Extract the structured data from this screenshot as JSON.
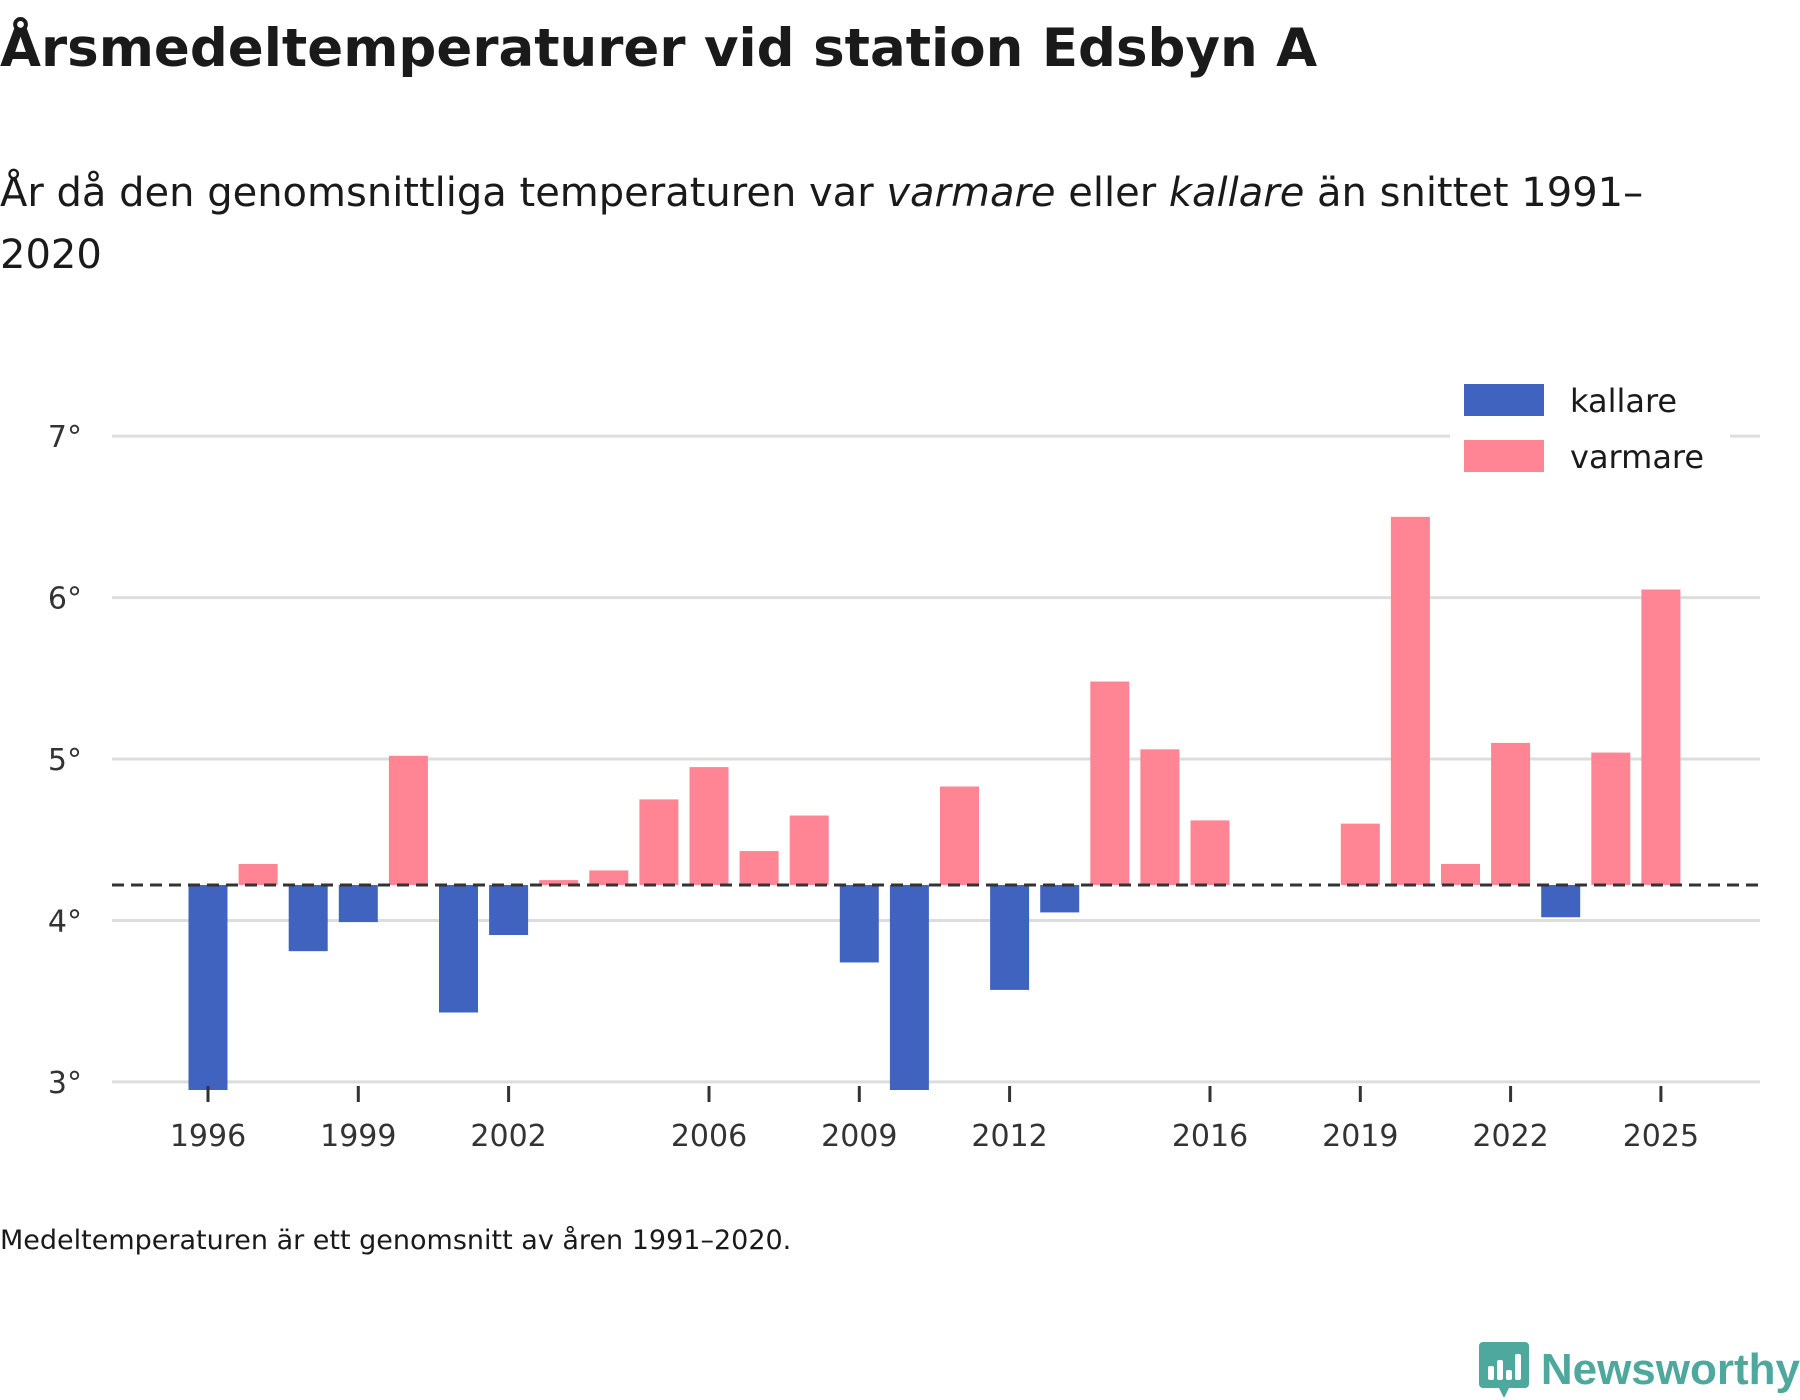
{
  "title_pre": "Årsmedeltemperaturer vid station ",
  "title_station": "Edsbyn A",
  "subtitle": {
    "part1": "År då den genomsnittliga temperaturen var ",
    "warm_word": "varmare",
    "part2": " eller ",
    "cold_word": "kallare",
    "part3": " än snittet 1991–2020"
  },
  "note": "Medeltemperaturen är ett genomsnitt av åren 1991–2020.",
  "brand": "Newsworthy",
  "colors": {
    "cold": "#4063bf",
    "warm": "#ff8494",
    "grid": "#dddddd",
    "baseline": "#333333",
    "brand": "#4fa89d"
  },
  "chart_data": {
    "type": "bar",
    "title": "Årsmedeltemperaturer vid station Edsbyn A",
    "baseline": 4.22,
    "ylim": [
      2.95,
      7.1
    ],
    "yticks": [
      3,
      4,
      5,
      6,
      7
    ],
    "ytick_suffix": "°",
    "xticks": [
      1996,
      1999,
      2002,
      2006,
      2009,
      2012,
      2016,
      2019,
      2022,
      2025
    ],
    "legend": {
      "cold_label": "kallare",
      "warm_label": "varmare",
      "position": "top-right"
    },
    "years": [
      1996,
      1997,
      1998,
      1999,
      2000,
      2001,
      2002,
      2003,
      2004,
      2005,
      2006,
      2007,
      2008,
      2009,
      2010,
      2011,
      2012,
      2013,
      2014,
      2015,
      2016,
      2019,
      2020,
      2021,
      2022,
      2023,
      2024,
      2025
    ],
    "values": [
      2.95,
      4.35,
      3.81,
      3.99,
      5.02,
      3.43,
      3.91,
      4.25,
      4.31,
      4.75,
      4.95,
      4.43,
      4.65,
      3.74,
      2.95,
      4.83,
      3.57,
      4.05,
      5.48,
      5.06,
      4.62,
      4.6,
      6.5,
      4.35,
      5.1,
      4.02,
      5.04,
      6.05
    ]
  }
}
